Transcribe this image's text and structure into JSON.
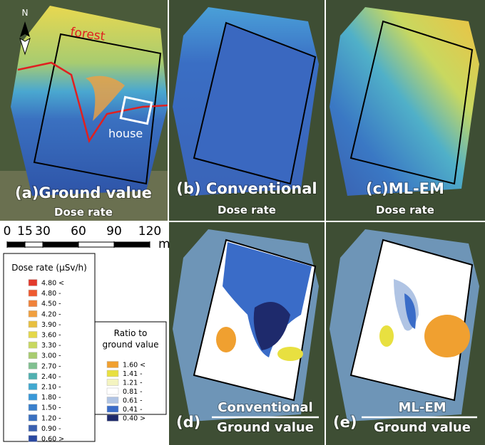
{
  "panels": [
    {
      "label": "(a)Ground value",
      "sublabel": "Dose rate"
    },
    {
      "label": "(b) Conventional",
      "sublabel": "Dose rate"
    },
    {
      "label": "(c)ML-EM",
      "sublabel": "Dose rate"
    },
    {
      "label": "(d)",
      "numerator": "Conventional",
      "denominator": "Ground value"
    },
    {
      "label": "(e)",
      "numerator": "ML-EM",
      "denominator": "Ground value"
    }
  ],
  "annotations": {
    "north": "N",
    "forest": "forest",
    "house": "house"
  },
  "scale_bar": {
    "ticks": [
      0,
      15,
      30,
      60,
      90,
      120
    ],
    "unit": "m"
  },
  "dose_legend": {
    "title": "Dose rate (μSv/h)",
    "items": [
      {
        "label": "4.80 <",
        "color": "#e23a2c"
      },
      {
        "label": "4.80 -",
        "color": "#ee5a30"
      },
      {
        "label": "4.50 -",
        "color": "#f0823a"
      },
      {
        "label": "4.20 -",
        "color": "#f0a040"
      },
      {
        "label": "3.90 -",
        "color": "#e8c040"
      },
      {
        "label": "3.60 -",
        "color": "#e4d84a"
      },
      {
        "label": "3.30 -",
        "color": "#c8d860"
      },
      {
        "label": "3.00 -",
        "color": "#a8cc70"
      },
      {
        "label": "2.70 -",
        "color": "#80c090"
      },
      {
        "label": "2.40 -",
        "color": "#50b0b0"
      },
      {
        "label": "2.10 -",
        "color": "#40a8d0"
      },
      {
        "label": "1.80 -",
        "color": "#3898d8"
      },
      {
        "label": "1.50 -",
        "color": "#3a80cc"
      },
      {
        "label": "1.20 -",
        "color": "#3a70c0"
      },
      {
        "label": "0.90 -",
        "color": "#3a60b0"
      },
      {
        "label": "0.60 >",
        "color": "#2a48a0"
      }
    ]
  },
  "ratio_legend": {
    "title_lines": [
      "Ratio to",
      "ground value"
    ],
    "items": [
      {
        "label": "1.60 <",
        "color": "#f0a030"
      },
      {
        "label": "1.41 -",
        "color": "#e8e040"
      },
      {
        "label": "1.21 -",
        "color": "#f4f4c0"
      },
      {
        "label": "0.81 -",
        "color": "#ffffff"
      },
      {
        "label": "0.61 -",
        "color": "#b0c4e4"
      },
      {
        "label": "0.41 -",
        "color": "#3a6cc8"
      },
      {
        "label": "0.40 >",
        "color": "#1e2a6c"
      }
    ]
  }
}
